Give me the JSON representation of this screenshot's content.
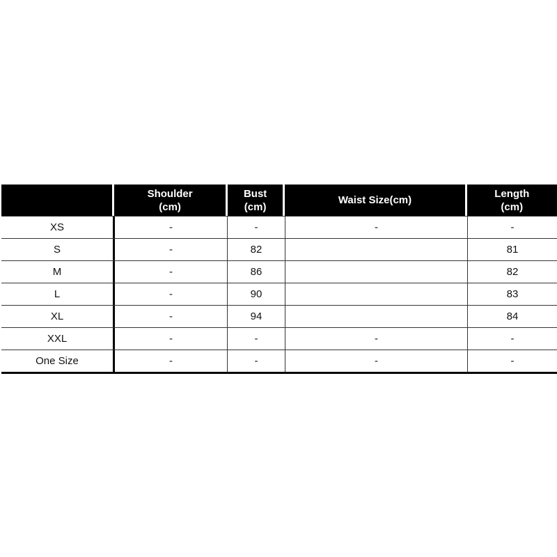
{
  "table": {
    "headers": [
      "",
      "Shoulder\n(cm)",
      "Bust\n(cm)",
      "Waist Size(cm)",
      "Length\n(cm)"
    ],
    "rows": [
      [
        "XS",
        "-",
        "-",
        "-",
        "-"
      ],
      [
        "S",
        "-",
        "82",
        "",
        "81"
      ],
      [
        "M",
        "-",
        "86",
        "",
        "82"
      ],
      [
        "L",
        "-",
        "90",
        "",
        "83"
      ],
      [
        "XL",
        "-",
        "94",
        "",
        "84"
      ],
      [
        "XXL",
        "-",
        "-",
        "-",
        "-"
      ],
      [
        "One Size",
        "-",
        "-",
        "-",
        "-"
      ]
    ]
  }
}
